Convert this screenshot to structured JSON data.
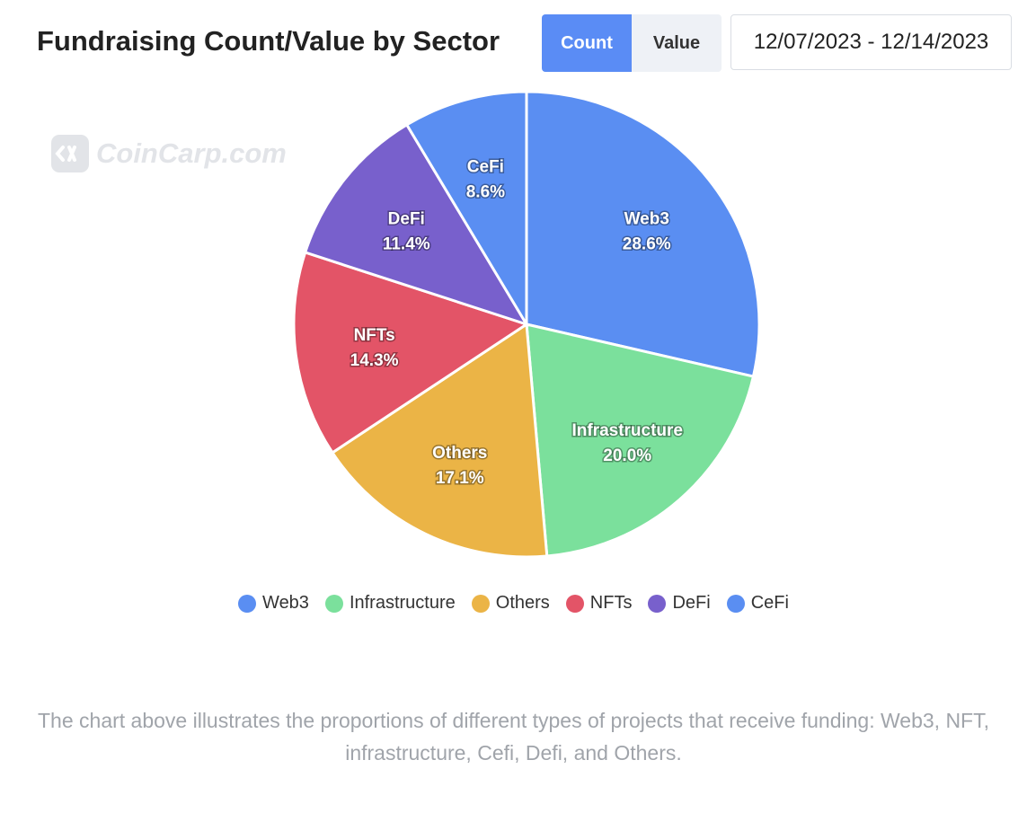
{
  "header": {
    "title": "Fundraising Count/Value by Sector",
    "toggle_count": "Count",
    "toggle_value": "Value",
    "date_range": "12/07/2023 - 12/14/2023"
  },
  "watermark": {
    "text": "CoinCarp.com"
  },
  "caption": "The chart above illustrates the proportions of different types of projects that receive funding: Web3, NFT, infrastructure, Cefi, Defi, and Others.",
  "chart_data": {
    "type": "pie",
    "title": "Fundraising Count/Value by Sector",
    "categories": [
      "Web3",
      "Infrastructure",
      "Others",
      "NFTs",
      "DeFi",
      "CeFi"
    ],
    "values": [
      28.6,
      20.0,
      17.1,
      14.3,
      11.4,
      8.6
    ],
    "labels": [
      "28.6%",
      "20.0%",
      "17.1%",
      "14.3%",
      "11.4%",
      "8.6%"
    ],
    "colors": [
      "#5a8ef2",
      "#7be09c",
      "#ebb446",
      "#e35467",
      "#7860cc",
      "#5a8ef2"
    ],
    "legend_position": "bottom"
  }
}
